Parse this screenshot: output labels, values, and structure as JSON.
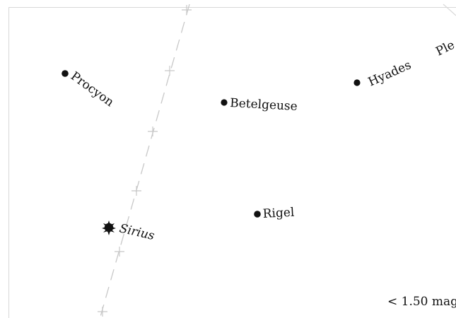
{
  "map": {
    "magnitude_note": "< 1.50 mag",
    "colors": {
      "star": "#111111",
      "ecliptic": "#c8c8c8",
      "frame": "#d8d8d8"
    },
    "objects": [
      {
        "id": "procyon",
        "label": "Procyon",
        "kind": "star"
      },
      {
        "id": "betelgeuse",
        "label": "Betelgeuse",
        "kind": "star"
      },
      {
        "id": "hyades",
        "label": "Hyades",
        "kind": "cluster"
      },
      {
        "id": "pleiades",
        "label": "Ple",
        "kind": "cluster-partial"
      },
      {
        "id": "rigel",
        "label": "Rigel",
        "kind": "star"
      },
      {
        "id": "sirius",
        "label": "Sirius",
        "kind": "star-bright"
      }
    ]
  }
}
